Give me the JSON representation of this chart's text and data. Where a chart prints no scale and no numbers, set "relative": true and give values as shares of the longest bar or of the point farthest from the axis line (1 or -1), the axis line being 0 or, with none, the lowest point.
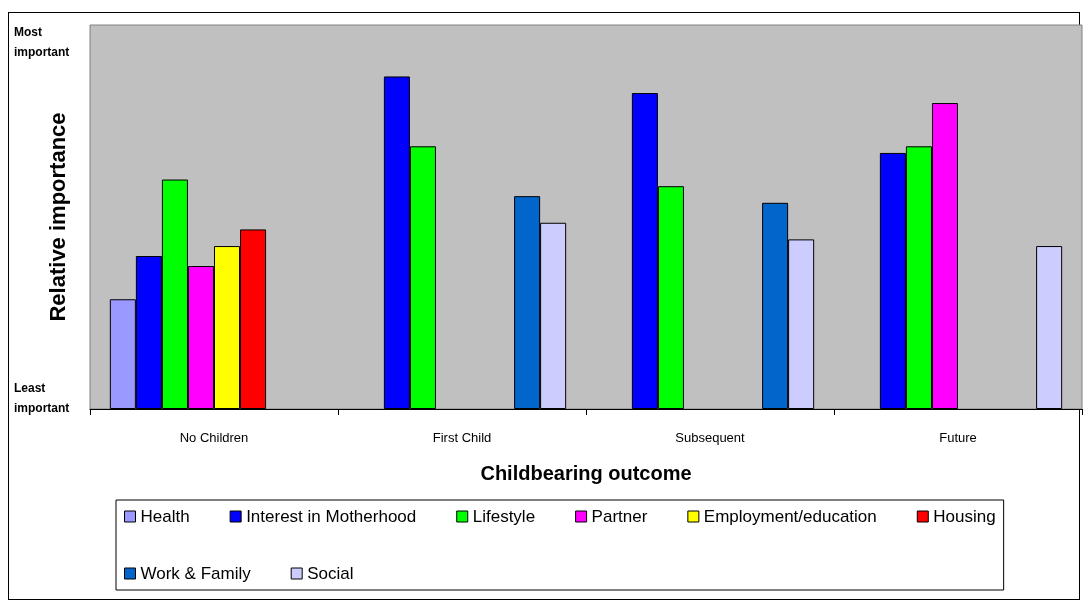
{
  "chart_data": {
    "type": "bar",
    "xlabel": "Childbearing outcome",
    "ylabel": "Relative importance",
    "categories": [
      "No Children",
      "First Child",
      "Subsequent",
      "Future"
    ],
    "relative": true,
    "annotations": [
      "Most important",
      "Least important"
    ],
    "series": [
      {
        "name": "Health",
        "color": "#9999ff",
        "values": [
          0.33,
          null,
          null,
          null
        ]
      },
      {
        "name": "Interest in Motherhood",
        "color": "#0000ff",
        "values": [
          0.46,
          1,
          0.95,
          0.77
        ]
      },
      {
        "name": "Lifestyle",
        "color": "#00ff00",
        "values": [
          0.69,
          0.79,
          0.67,
          0.79
        ]
      },
      {
        "name": "Partner",
        "color": "#ff00ff",
        "values": [
          0.43,
          null,
          null,
          0.92
        ]
      },
      {
        "name": "Employment/education",
        "color": "#ffff00",
        "values": [
          0.49,
          null,
          null,
          null
        ]
      },
      {
        "name": "Housing",
        "color": "#ff0000",
        "values": [
          0.54,
          null,
          null,
          null
        ]
      },
      {
        "name": "Work & Family",
        "color": "#0066cc",
        "values": [
          null,
          0.64,
          0.62,
          null
        ]
      },
      {
        "name": "Social",
        "color": "#ccccff",
        "values": [
          null,
          0.56,
          0.51,
          0.49
        ]
      }
    ],
    "grid": false,
    "legend": "bottom"
  }
}
